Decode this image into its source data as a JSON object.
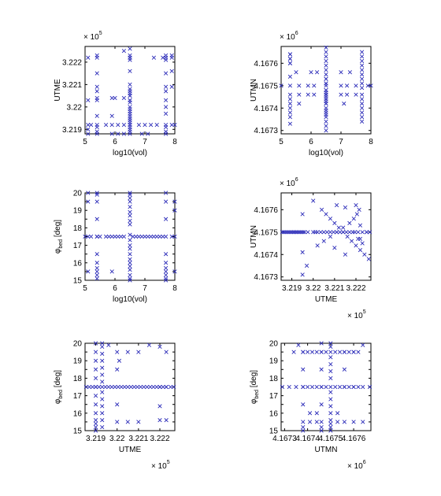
{
  "figure": {
    "marker_color": "#2a2ab8",
    "axis_color": "#000000",
    "marker": "x"
  },
  "chart_data": [
    {
      "type": "scatter",
      "xlabel": "log10(vol)",
      "ylabel": "UTME",
      "xlim": [
        5,
        8
      ],
      "ylim": [
        321880,
        322270
      ],
      "xticks": [
        5,
        6,
        7,
        8
      ],
      "xticklabels": [
        "5",
        "6",
        "7",
        "8"
      ],
      "yticks": [
        321900,
        322000,
        322100,
        322200
      ],
      "yticklabels": [
        "3.219",
        "3.22",
        "3.221",
        "3.222"
      ],
      "y_exponent": "5",
      "x": [
        5.1,
        5.1,
        5.1,
        5.1,
        5.1,
        5.4,
        5.4,
        5.4,
        5.4,
        5.4,
        5.4,
        5.4,
        5.4,
        5.4,
        5.4,
        5.4,
        5.4,
        6.5,
        6.5,
        6.5,
        6.5,
        6.5,
        6.5,
        6.5,
        6.5,
        6.5,
        6.5,
        6.5,
        6.5,
        6.5,
        6.5,
        6.5,
        6.5,
        6.5,
        6.5,
        6.5,
        6.5,
        6.5,
        6.5,
        6.5,
        6.5,
        6.5,
        6.5,
        6.5,
        6.5,
        6.5,
        7.7,
        7.7,
        7.7,
        7.7,
        7.7,
        7.7,
        7.7,
        7.7,
        7.7,
        7.7,
        7.7,
        7.7,
        7.7,
        7.9,
        7.9,
        7.9,
        7.9,
        7.9,
        5.2,
        5.7,
        5.9,
        6.1,
        6.3,
        6.8,
        7.0,
        7.2,
        7.4,
        5.9,
        6.1,
        6.3,
        6.9,
        7.1,
        5.9,
        6.0,
        6.3,
        5.9,
        6.3,
        7.3,
        7.6,
        8.0
      ],
      "y": [
        322220,
        322030,
        321920,
        321900,
        321880,
        322230,
        322220,
        322150,
        322090,
        322070,
        322040,
        322030,
        321960,
        321920,
        321910,
        321890,
        321880,
        322260,
        322230,
        322220,
        322210,
        322160,
        322100,
        322080,
        322060,
        322050,
        322030,
        322020,
        322000,
        321990,
        321980,
        321970,
        321960,
        321950,
        321940,
        321930,
        321920,
        321910,
        321900,
        321890,
        321880,
        322220,
        322050,
        322070,
        322030,
        321920,
        322230,
        322220,
        322210,
        322150,
        322090,
        322070,
        322030,
        322000,
        321970,
        321920,
        321910,
        321890,
        321880,
        322230,
        322220,
        322160,
        322090,
        321920,
        321920,
        321920,
        321920,
        321920,
        321920,
        321920,
        321920,
        321920,
        321920,
        321880,
        321880,
        321880,
        321880,
        321880,
        322040,
        322040,
        322040,
        321960,
        322250,
        322220,
        322220,
        321920
      ]
    },
    {
      "type": "scatter",
      "xlabel": "log10(vol)",
      "ylabel": "UTMN",
      "xlim": [
        5,
        8
      ],
      "ylim": [
        4167285,
        4167675
      ],
      "xticks": [
        5,
        6,
        7,
        8
      ],
      "xticklabels": [
        "5",
        "6",
        "7",
        "8"
      ],
      "yticks": [
        4167300,
        4167400,
        4167500,
        4167600
      ],
      "yticklabels": [
        "4.1673",
        "4.1674",
        "4.1675",
        "4.1676"
      ],
      "y_exponent": "6",
      "x": [
        5.3,
        5.3,
        5.3,
        5.3,
        5.3,
        5.3,
        5.3,
        5.3,
        5.3,
        5.3,
        5.3,
        5.3,
        5.3,
        5.3,
        5.3,
        6.5,
        6.5,
        6.5,
        6.5,
        6.5,
        6.5,
        6.5,
        6.5,
        6.5,
        6.5,
        6.5,
        6.5,
        6.5,
        6.5,
        6.5,
        6.5,
        6.5,
        6.5,
        6.5,
        6.5,
        6.5,
        6.5,
        6.5,
        6.5,
        6.5,
        6.5,
        6.5,
        6.5,
        6.5,
        6.5,
        6.5,
        6.5,
        7.7,
        7.7,
        7.7,
        7.7,
        7.7,
        7.7,
        7.7,
        7.7,
        7.7,
        7.7,
        7.7,
        7.7,
        7.7,
        7.7,
        7.7,
        7.7,
        5.0,
        5.6,
        5.9,
        6.1,
        7.0,
        7.2,
        7.5,
        7.9,
        8.0,
        5.6,
        5.9,
        6.1,
        7.0,
        7.2,
        7.5,
        5.6,
        7.1,
        5.5,
        6.0,
        6.2,
        7.0,
        7.3
      ],
      "y": [
        4167640,
        4167620,
        4167600,
        4167540,
        4167500,
        4167460,
        4167440,
        4167420,
        4167400,
        4167380,
        4167360,
        4167330,
        4167640,
        4167620,
        4167600,
        4167670,
        4167650,
        4167630,
        4167610,
        4167590,
        4167570,
        4167550,
        4167530,
        4167510,
        4167500,
        4167480,
        4167470,
        4167460,
        4167450,
        4167440,
        4167430,
        4167420,
        4167400,
        4167390,
        4167380,
        4167370,
        4167360,
        4167340,
        4167320,
        4167300,
        4167420,
        4167460,
        4167440,
        4167510,
        4167530,
        4167480,
        4167460,
        4167650,
        4167630,
        4167610,
        4167590,
        4167570,
        4167550,
        4167530,
        4167510,
        4167490,
        4167460,
        4167440,
        4167420,
        4167400,
        4167380,
        4167360,
        4167340,
        4167500,
        4167500,
        4167500,
        4167500,
        4167500,
        4167500,
        4167500,
        4167500,
        4167500,
        4167460,
        4167460,
        4167460,
        4167460,
        4167460,
        4167460,
        4167420,
        4167420,
        4167560,
        4167560,
        4167560,
        4167560,
        4167560
      ]
    },
    {
      "type": "scatter",
      "xlabel": "log10(vol)",
      "ylabel": "φbed [deg]",
      "ylabel_main": "φ",
      "ylabel_sub": "bed",
      "ylabel_tail": " [deg]",
      "xlim": [
        5,
        8
      ],
      "ylim": [
        15,
        20
      ],
      "xticks": [
        5,
        6,
        7,
        8
      ],
      "xticklabels": [
        "5",
        "6",
        "7",
        "8"
      ],
      "yticks": [
        15,
        15.5,
        16,
        16.5,
        17,
        17.5,
        18,
        18.5,
        19,
        19.5,
        20
      ],
      "yticklabels": [
        "15",
        "",
        "16",
        "",
        "17",
        "",
        "18",
        "",
        "19",
        "",
        "20"
      ],
      "x": [
        5.1,
        5.4,
        5.7,
        5.9,
        6.1,
        6.3,
        6.7,
        6.9,
        7.1,
        7.3,
        7.5,
        7.9,
        8.0,
        5.0,
        5.2,
        5.5,
        5.8,
        6.0,
        6.2,
        6.8,
        7.0,
        7.2,
        7.4,
        7.6,
        5.4,
        5.4,
        5.4,
        5.4,
        5.4,
        5.4,
        5.4,
        5.4,
        5.4,
        5.4,
        5.4,
        6.5,
        6.5,
        6.5,
        6.5,
        6.5,
        6.5,
        6.5,
        6.5,
        6.5,
        6.5,
        6.5,
        6.5,
        6.5,
        6.5,
        6.5,
        6.5,
        6.5,
        6.5,
        6.5,
        6.5,
        6.5,
        7.7,
        7.7,
        7.7,
        7.7,
        7.7,
        7.7,
        7.7,
        7.7,
        7.7,
        7.7,
        7.7,
        5.1,
        5.1,
        8.0,
        8.0,
        5.9,
        5.1,
        8.0,
        6.6
      ],
      "y": [
        17.5,
        17.5,
        17.5,
        17.5,
        17.5,
        17.5,
        17.5,
        17.5,
        17.5,
        17.5,
        17.5,
        17.5,
        17.5,
        17.5,
        17.5,
        17.5,
        17.5,
        17.5,
        17.5,
        17.5,
        17.5,
        17.5,
        17.5,
        17.5,
        20.0,
        19.9,
        19.5,
        18.5,
        17.5,
        16.5,
        16.0,
        15.7,
        15.5,
        15.3,
        15.1,
        20.0,
        19.9,
        19.7,
        19.5,
        19.2,
        18.9,
        18.7,
        18.4,
        18.2,
        17.6,
        17.3,
        17.0,
        16.8,
        16.5,
        16.2,
        16.0,
        15.8,
        15.6,
        15.3,
        15.1,
        15.0,
        20.0,
        19.5,
        18.5,
        17.5,
        16.5,
        16.0,
        15.7,
        15.5,
        15.3,
        15.1,
        15.0,
        20.0,
        19.5,
        19.5,
        19.0,
        15.5,
        15.5,
        15.5,
        17.5
      ]
    },
    {
      "type": "scatter",
      "xlabel": "UTME",
      "ylabel": "UTMN",
      "xlim": [
        321850,
        322270
      ],
      "ylim": [
        4167285,
        4167675
      ],
      "xticks": [
        321900,
        322000,
        322100,
        322200
      ],
      "xticklabels": [
        "3.219",
        "3.22",
        "3.221",
        "3.222"
      ],
      "x_exponent": "5",
      "yticks": [
        4167300,
        4167400,
        4167500,
        4167600
      ],
      "yticklabels": [
        "4.1673",
        "4.1674",
        "4.1675",
        "4.1676"
      ],
      "y_exponent": "6",
      "x": [
        321855,
        321862,
        321869,
        321876,
        321883,
        321890,
        321897,
        321904,
        321911,
        321918,
        321925,
        321932,
        321939,
        321946,
        321953,
        321960,
        321975,
        322000,
        322010,
        322020,
        322035,
        322050,
        322065,
        322080,
        322095,
        322110,
        322125,
        322140,
        322155,
        322170,
        322185,
        322195,
        322210,
        322230,
        322250,
        322265,
        322020,
        322050,
        322080,
        322110,
        322140,
        322170,
        322190,
        322205,
        322215,
        322040,
        322060,
        322080,
        322100,
        322120,
        322140,
        322160,
        322180,
        322200,
        322220,
        322240,
        322260,
        321950,
        321950,
        322000,
        322110,
        322150,
        322200,
        322210,
        322230,
        322250,
        321950,
        321970,
        322100,
        322220,
        322220,
        322150
      ],
      "y": [
        4167500,
        4167500,
        4167500,
        4167500,
        4167500,
        4167500,
        4167500,
        4167500,
        4167500,
        4167500,
        4167500,
        4167500,
        4167500,
        4167500,
        4167500,
        4167500,
        4167500,
        4167500,
        4167500,
        4167500,
        4167500,
        4167500,
        4167500,
        4167500,
        4167500,
        4167500,
        4167500,
        4167500,
        4167500,
        4167500,
        4167500,
        4167500,
        4167500,
        4167500,
        4167500,
        4167500,
        4167440,
        4167460,
        4167480,
        4167500,
        4167520,
        4167540,
        4167560,
        4167580,
        4167600,
        4167600,
        4167580,
        4167560,
        4167540,
        4167520,
        4167500,
        4167480,
        4167460,
        4167440,
        4167420,
        4167400,
        4167380,
        4167580,
        4167310,
        4167640,
        4167620,
        4167610,
        4167620,
        4167470,
        4167450,
        4167500,
        4167410,
        4167350,
        4167430,
        4167470,
        4167530,
        4167400
      ]
    },
    {
      "type": "scatter",
      "xlabel": "UTME",
      "ylabel": "φbed [deg]",
      "ylabel_main": "φ",
      "ylabel_sub": "bed",
      "ylabel_tail": " [deg]",
      "xlim": [
        321850,
        322270
      ],
      "ylim": [
        15,
        20
      ],
      "xticks": [
        321900,
        322000,
        322100,
        322200
      ],
      "xticklabels": [
        "3.219",
        "3.22",
        "3.221",
        "3.222"
      ],
      "x_exponent": "5",
      "yticks": [
        15,
        15.5,
        16,
        16.5,
        17,
        17.5,
        18,
        18.5,
        19,
        19.5,
        20
      ],
      "yticklabels": [
        "15",
        "",
        "16",
        "",
        "17",
        "",
        "18",
        "",
        "19",
        "",
        "20"
      ],
      "x": [
        321855,
        321870,
        321885,
        321900,
        321915,
        321930,
        321945,
        321960,
        321975,
        321990,
        322005,
        322020,
        322035,
        322050,
        322065,
        322080,
        322095,
        322110,
        322125,
        322140,
        322155,
        322170,
        322185,
        322200,
        322215,
        322230,
        322250,
        322265,
        321900,
        321900,
        321900,
        321900,
        321900,
        321900,
        321900,
        321900,
        321900,
        321900,
        321900,
        321900,
        321900,
        321930,
        321930,
        321930,
        321930,
        321930,
        321930,
        321930,
        321930,
        321930,
        321930,
        321930,
        321930,
        321930,
        322000,
        322000,
        322000,
        322000,
        322100,
        322100,
        322200,
        322200,
        322200,
        322200,
        322230,
        322230,
        322230,
        321960,
        322010,
        322050,
        322150,
        322050
      ],
      "y": [
        17.5,
        17.5,
        17.5,
        17.5,
        17.5,
        17.5,
        17.5,
        17.5,
        17.5,
        17.5,
        17.5,
        17.5,
        17.5,
        17.5,
        17.5,
        17.5,
        17.5,
        17.5,
        17.5,
        17.5,
        17.5,
        17.5,
        17.5,
        17.5,
        17.5,
        17.5,
        17.5,
        17.5,
        20.0,
        19.5,
        19.0,
        18.5,
        18.0,
        17.5,
        17.0,
        16.5,
        16.0,
        15.6,
        15.4,
        15.2,
        15.0,
        20.0,
        19.8,
        19.4,
        19.0,
        18.6,
        18.2,
        17.8,
        17.2,
        16.8,
        16.4,
        16.0,
        15.6,
        15.2,
        19.5,
        18.5,
        16.5,
        15.5,
        19.5,
        15.5,
        19.8,
        17.5,
        16.4,
        15.6,
        19.5,
        17.5,
        15.6,
        19.9,
        19.0,
        15.5,
        19.9,
        19.5
      ]
    },
    {
      "type": "scatter",
      "xlabel": "UTMN",
      "ylabel": "φbed [deg]",
      "ylabel_main": "φ",
      "ylabel_sub": "bed",
      "ylabel_tail": " [deg]",
      "xlim": [
        4167285,
        4167675
      ],
      "ylim": [
        15,
        20
      ],
      "xticks": [
        4167300,
        4167400,
        4167500,
        4167600
      ],
      "xticklabels": [
        "4.1673",
        "4.1674",
        "4.1675",
        "4.1676"
      ],
      "x_exponent": "6",
      "yticks": [
        15,
        15.5,
        16,
        16.5,
        17,
        17.5,
        18,
        18.5,
        19,
        19.5,
        20
      ],
      "yticklabels": [
        "15",
        "",
        "16",
        "",
        "17",
        "",
        "18",
        "",
        "19",
        "",
        "20"
      ],
      "x": [
        4167290,
        4167320,
        4167350,
        4167380,
        4167400,
        4167420,
        4167440,
        4167460,
        4167480,
        4167500,
        4167520,
        4167540,
        4167560,
        4167580,
        4167600,
        4167620,
        4167640,
        4167670,
        4167340,
        4167360,
        4167380,
        4167400,
        4167420,
        4167440,
        4167460,
        4167480,
        4167500,
        4167520,
        4167540,
        4167560,
        4167580,
        4167600,
        4167620,
        4167500,
        4167500,
        4167500,
        4167500,
        4167500,
        4167500,
        4167500,
        4167500,
        4167500,
        4167500,
        4167500,
        4167500,
        4167500,
        4167500,
        4167460,
        4167460,
        4167460,
        4167460,
        4167460,
        4167460,
        4167460,
        4167460,
        4167380,
        4167380,
        4167380,
        4167380,
        4167380,
        4167380,
        4167380,
        4167560,
        4167560,
        4167560,
        4167560,
        4167600,
        4167600,
        4167600,
        4167410,
        4167440,
        4167530,
        4167410,
        4167440,
        4167530,
        4167640,
        4167640
      ],
      "y": [
        17.5,
        17.5,
        17.5,
        17.5,
        17.5,
        17.5,
        17.5,
        17.5,
        17.5,
        17.5,
        17.5,
        17.5,
        17.5,
        17.5,
        17.5,
        17.5,
        17.5,
        17.5,
        19.5,
        19.9,
        19.5,
        19.5,
        19.5,
        19.5,
        19.5,
        19.5,
        19.5,
        19.5,
        19.5,
        19.5,
        19.5,
        19.5,
        19.5,
        20.0,
        19.8,
        19.2,
        18.8,
        18.4,
        18.0,
        17.2,
        16.8,
        16.4,
        16.0,
        15.6,
        15.4,
        15.2,
        15.0,
        20.0,
        19.5,
        18.5,
        17.5,
        16.5,
        15.5,
        15.2,
        15.0,
        19.5,
        18.5,
        17.5,
        16.5,
        15.5,
        15.2,
        15.0,
        19.5,
        18.5,
        17.5,
        15.5,
        19.5,
        17.5,
        15.5,
        15.5,
        15.5,
        15.5,
        16.0,
        16.0,
        16.0,
        19.9,
        15.5
      ]
    }
  ]
}
